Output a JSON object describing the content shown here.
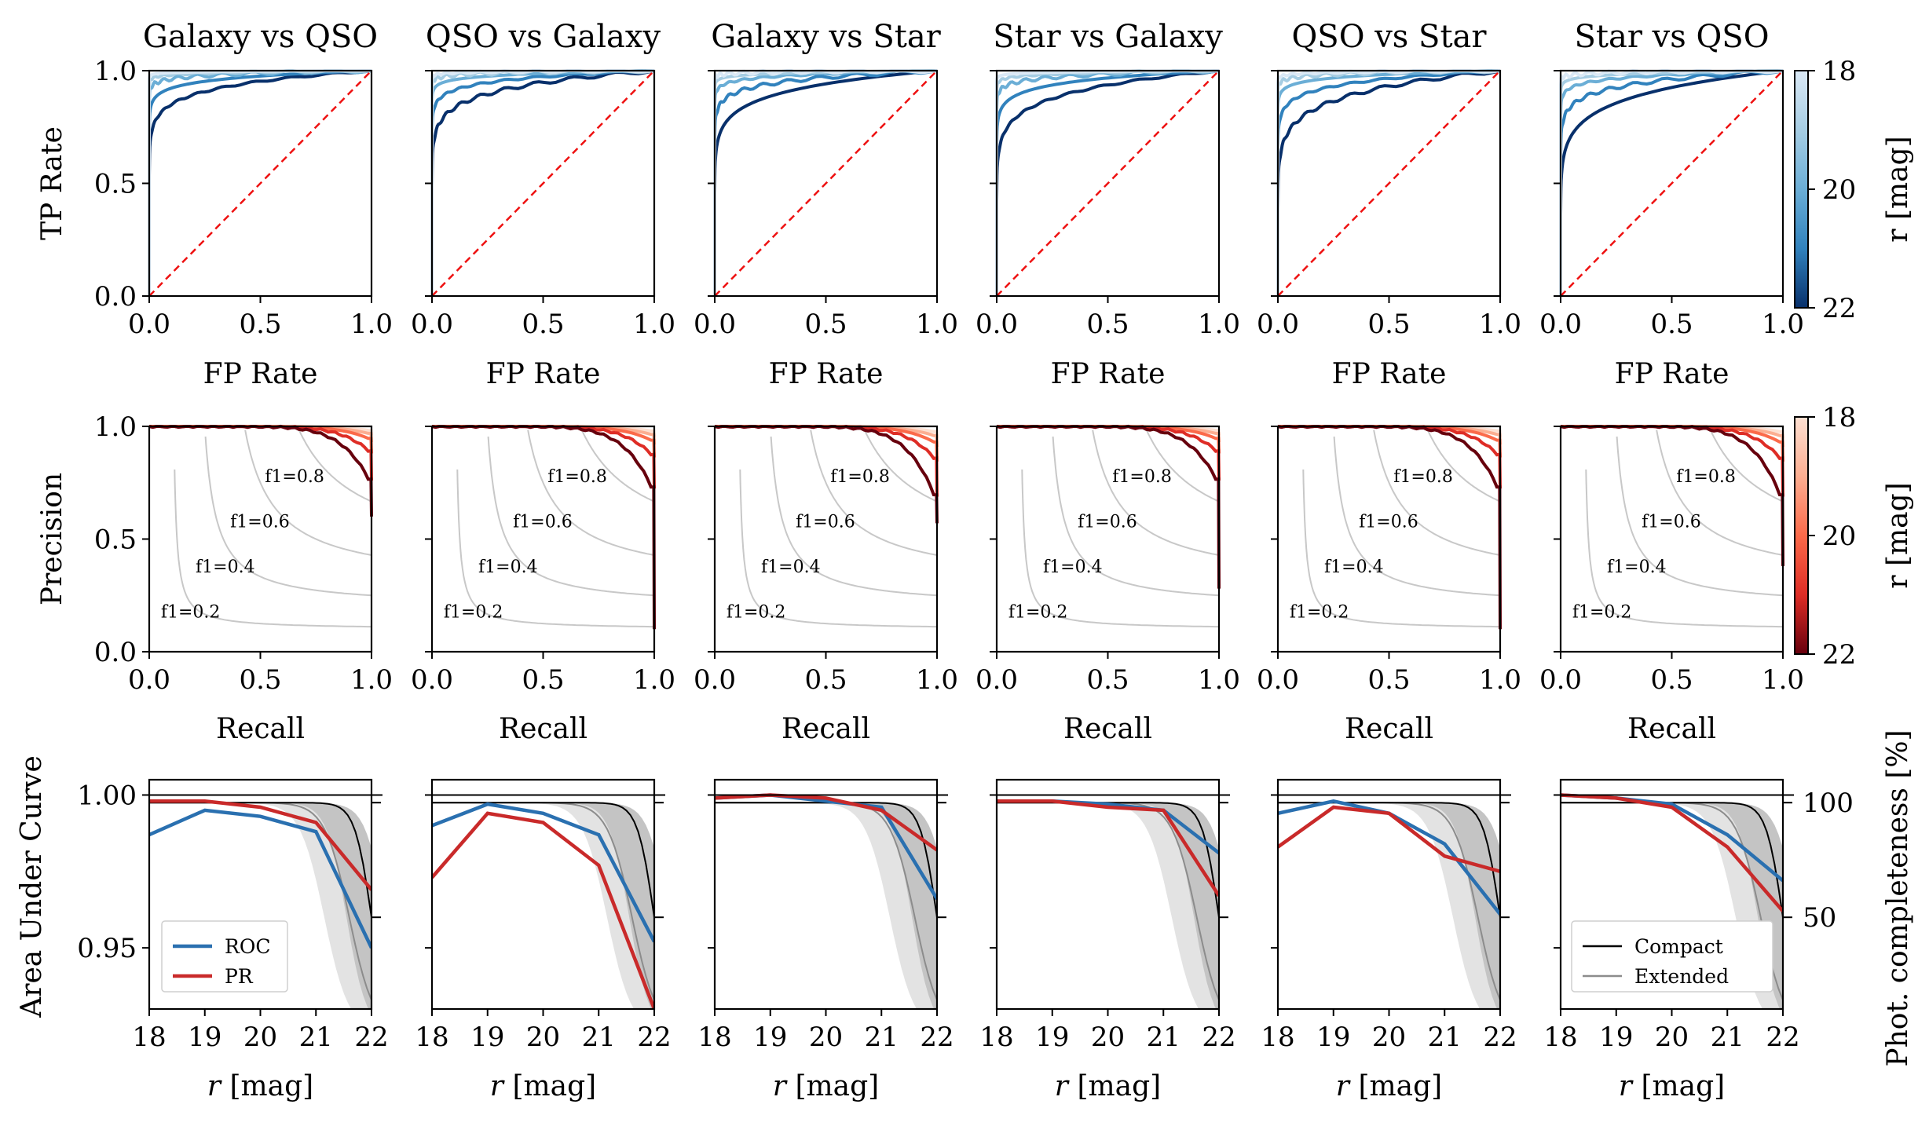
{
  "chart_data": {
    "type": "line",
    "columns": [
      "Galaxy vs QSO",
      "QSO vs Galaxy",
      "Galaxy vs Star",
      "Star vs Galaxy",
      "QSO vs Star",
      "Star vs QSO"
    ],
    "roc": {
      "xlabel": "FP Rate",
      "ylabel": "TP Rate",
      "xlim": [
        0,
        1
      ],
      "ylim": [
        0,
        1
      ],
      "xticks": [
        "0.0",
        "0.5",
        "1.0"
      ],
      "yticks": [
        "0.0",
        "0.5",
        "1.0"
      ],
      "diagonal": "random classifier",
      "colorbar": {
        "label": "r [mag]",
        "ticks": [
          "18",
          "20",
          "22"
        ],
        "range": [
          18,
          22
        ],
        "colormap": "Blues"
      }
    },
    "pr": {
      "xlabel": "Recall",
      "ylabel": "Precision",
      "xlim": [
        0,
        1
      ],
      "ylim": [
        0,
        1
      ],
      "xticks": [
        "0.0",
        "0.5",
        "1.0"
      ],
      "yticks": [
        "0.0",
        "0.5",
        "1.0"
      ],
      "f1_contours": [
        0.2,
        0.4,
        0.6,
        0.8
      ],
      "f1_labels": [
        "f1=0.2",
        "f1=0.4",
        "f1=0.6",
        "f1=0.8"
      ],
      "colorbar": {
        "label": "r [mag]",
        "ticks": [
          "18",
          "20",
          "22"
        ],
        "range": [
          18,
          22
        ],
        "colormap": "Reds"
      }
    },
    "auc": {
      "xlabel": "r [mag]",
      "ylabel": "Area Under Curve",
      "y2label": "Phot. completeness [%]",
      "x": [
        18,
        19,
        20,
        21,
        22
      ],
      "xticks": [
        "18",
        "19",
        "20",
        "21",
        "22"
      ],
      "yticks": [
        "0.95",
        "1.00"
      ],
      "y2ticks": [
        "50",
        "100"
      ],
      "ylim": [
        0.93,
        1.005
      ],
      "legend_left": [
        "ROC",
        "PR"
      ],
      "legend_right": [
        "Compact",
        "Extended"
      ],
      "series": [
        {
          "panel": "Galaxy vs QSO",
          "roc": [
            0.987,
            0.995,
            0.993,
            0.988,
            0.95
          ],
          "pr": [
            0.998,
            0.998,
            0.996,
            0.991,
            0.969
          ]
        },
        {
          "panel": "QSO vs Galaxy",
          "roc": [
            0.99,
            0.997,
            0.994,
            0.987,
            0.952
          ],
          "pr": [
            0.973,
            0.994,
            0.991,
            0.977,
            0.93
          ]
        },
        {
          "panel": "Galaxy vs Star",
          "roc": [
            0.999,
            1.0,
            0.998,
            0.996,
            0.966
          ],
          "pr": [
            0.999,
            1.0,
            0.999,
            0.995,
            0.982
          ]
        },
        {
          "panel": "Star vs Galaxy",
          "roc": [
            0.998,
            0.998,
            0.997,
            0.995,
            0.981
          ],
          "pr": [
            0.998,
            0.998,
            0.996,
            0.995,
            0.967
          ]
        },
        {
          "panel": "QSO vs Star",
          "roc": [
            0.994,
            0.998,
            0.994,
            0.984,
            0.961
          ],
          "pr": [
            0.983,
            0.996,
            0.994,
            0.98,
            0.975
          ]
        },
        {
          "panel": "Star vs QSO",
          "roc": [
            1.0,
            0.999,
            0.997,
            0.987,
            0.972
          ],
          "pr": [
            1.0,
            0.999,
            0.996,
            0.983,
            0.962
          ]
        }
      ],
      "completeness_pct": {
        "compact_50pct_mag": 22.0,
        "extended_50pct_mag": 21.6,
        "y2_range_pct": [
          10,
          110
        ]
      }
    },
    "colors": {
      "roc": "#2a70b0",
      "pr": "#c92a2a",
      "diagonal": "#ee1111",
      "f1_contour": "#c8c8c8",
      "compact": "#000000",
      "extended": "#8c8c8c"
    }
  }
}
